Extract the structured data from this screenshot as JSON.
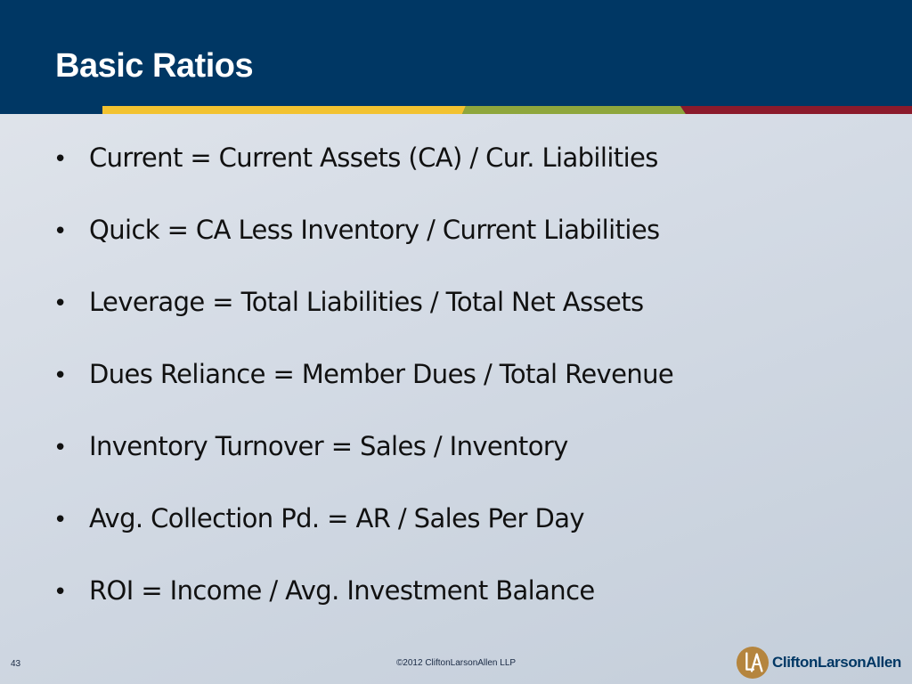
{
  "slide": {
    "title": "Basic Ratios",
    "bullet_glyph": "•",
    "bullets": [
      "Current = Current Assets (CA) / Cur. Liabilities",
      "Quick = CA Less Inventory / Current Liabilities",
      "Leverage = Total Liabilities / Total Net Assets",
      "Dues Reliance = Member Dues / Total Revenue",
      "Inventory Turnover = Sales / Inventory",
      "Avg. Collection Pd. = AR / Sales Per Day",
      "ROI = Income / Avg. Investment Balance"
    ]
  },
  "footer": {
    "page_number": "43",
    "copyright": "©2012 CliftonLarsonAllen LLP",
    "logo_name": "CliftonLarsonAllen",
    "logo_icon": "cla-monogram-icon"
  },
  "colors": {
    "header_navy": "#003764",
    "stripe_gold": "#f2c230",
    "stripe_green": "#8ea63c",
    "stripe_maroon": "#8b1a2b",
    "logo_gold": "#b5853e"
  }
}
